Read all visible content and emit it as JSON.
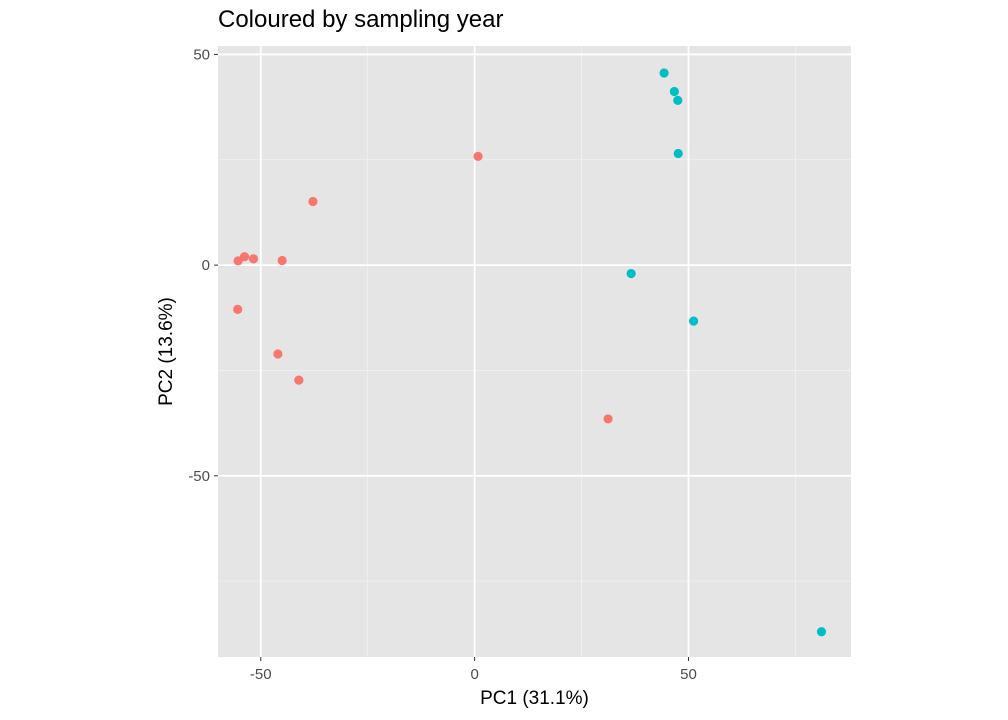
{
  "chart_data": {
    "type": "scatter",
    "title": "Coloured by sampling year",
    "xlabel": "PC1 (31.1%)",
    "ylabel": "PC2 (13.6%)",
    "xlim": [
      -60,
      88
    ],
    "ylim": [
      -93,
      52
    ],
    "x_ticks": [
      -50,
      0,
      50
    ],
    "y_ticks": [
      50,
      0,
      -50
    ],
    "x_tick_labels": [
      "-50",
      "0",
      "50"
    ],
    "y_tick_labels": [
      "50",
      "0",
      "-50"
    ],
    "grid": true,
    "legend": "none",
    "series": [
      {
        "color": "#f8766d",
        "points": [
          {
            "x": 0.8,
            "y": 25.8
          },
          {
            "x": -37.8,
            "y": 15.1
          },
          {
            "x": -55.3,
            "y": 1.0
          },
          {
            "x": -53.8,
            "y": 2.0
          },
          {
            "x": -51.7,
            "y": 1.5
          },
          {
            "x": -45.0,
            "y": 1.1
          },
          {
            "x": -55.4,
            "y": -10.5
          },
          {
            "x": -46.0,
            "y": -21.1
          },
          {
            "x": -41.1,
            "y": -27.3
          },
          {
            "x": 31.2,
            "y": -36.5
          }
        ]
      },
      {
        "color": "#00bfc4",
        "points": [
          {
            "x": 44.3,
            "y": 45.6
          },
          {
            "x": 46.7,
            "y": 41.2
          },
          {
            "x": 47.5,
            "y": 39.1
          },
          {
            "x": 47.6,
            "y": 26.5
          },
          {
            "x": 36.6,
            "y": -2.0
          },
          {
            "x": 51.2,
            "y": -13.3
          },
          {
            "x": 81.1,
            "y": -87.0
          }
        ]
      }
    ]
  }
}
